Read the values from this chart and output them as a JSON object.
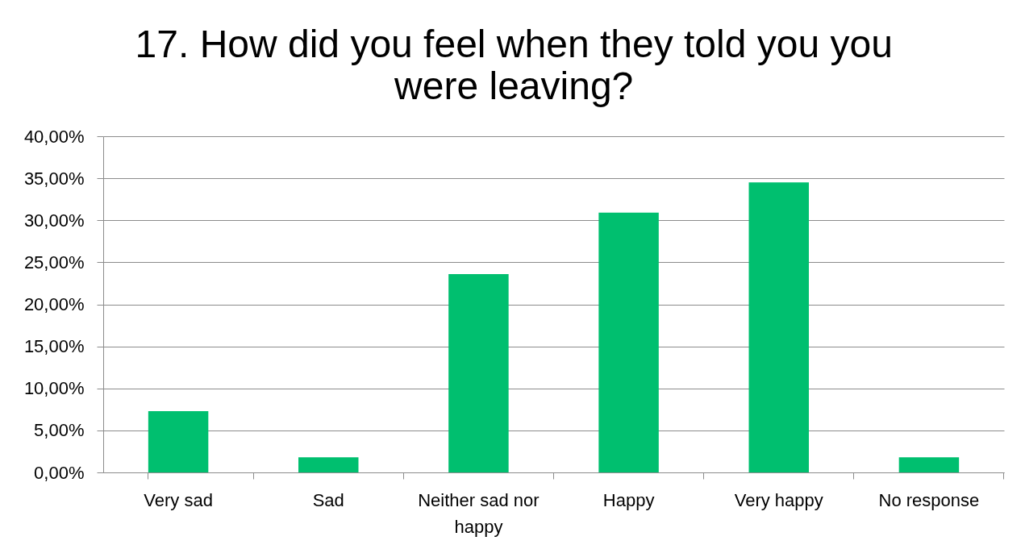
{
  "chart_data": {
    "type": "bar",
    "title": "17. How did you feel when they told you you were leaving?",
    "categories": [
      "Very sad",
      "Sad",
      "Neither sad nor happy",
      "Happy",
      "Very happy",
      "No response"
    ],
    "values": [
      7.3,
      1.8,
      23.6,
      30.9,
      34.5,
      1.8
    ],
    "color": "#00bf6f",
    "ylim": [
      0,
      40
    ],
    "yticks": [
      {
        "value": 0,
        "label": "0,00%"
      },
      {
        "value": 5,
        "label": "5,00%"
      },
      {
        "value": 10,
        "label": "10,00%"
      },
      {
        "value": 15,
        "label": "15,00%"
      },
      {
        "value": 20,
        "label": "20,00%"
      },
      {
        "value": 25,
        "label": "25,00%"
      },
      {
        "value": 30,
        "label": "30,00%"
      },
      {
        "value": 35,
        "label": "35,00%"
      },
      {
        "value": 40,
        "label": "40,00%"
      }
    ],
    "grid": "y"
  }
}
